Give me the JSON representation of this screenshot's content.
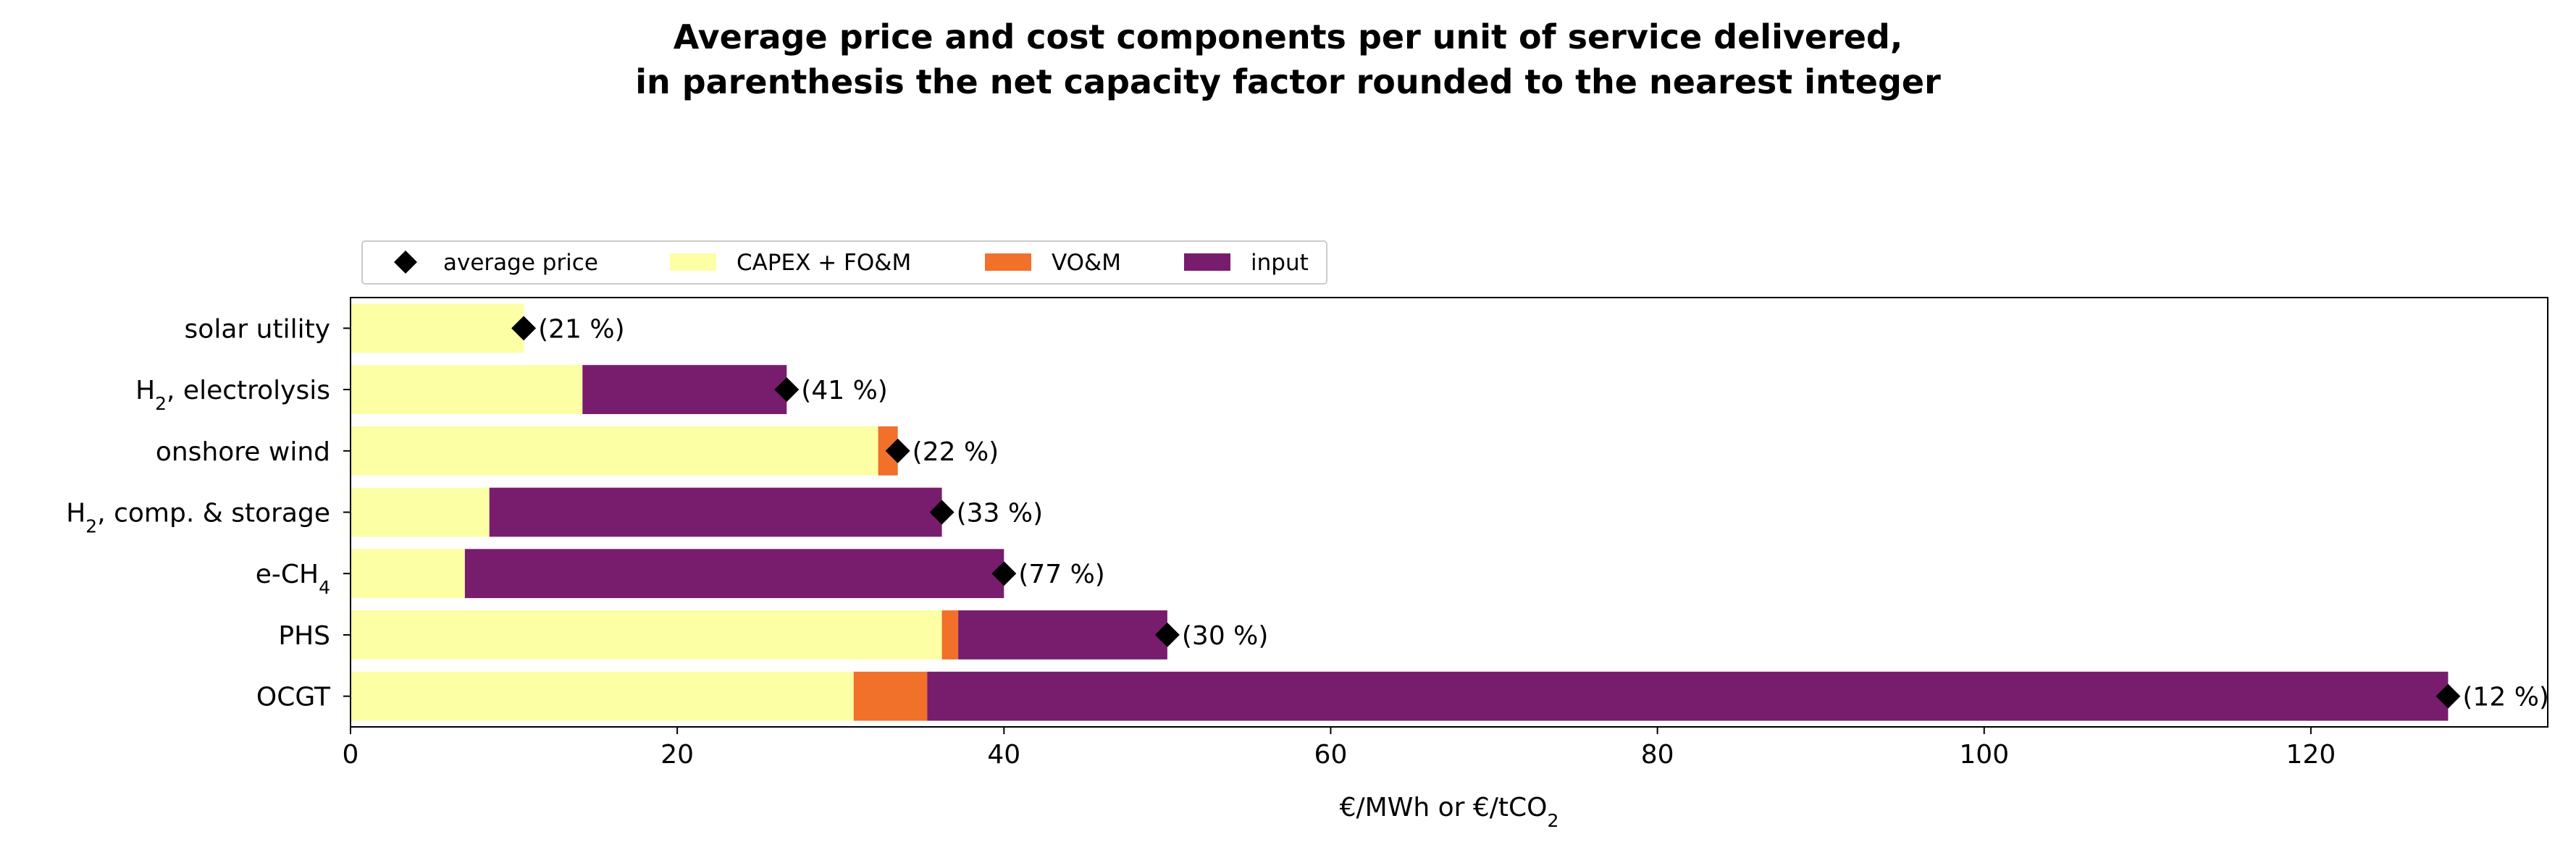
{
  "chart_data": {
    "type": "bar",
    "orientation": "horizontal",
    "stacked": true,
    "title": "Average price and cost components per unit of service delivered,\nin parenthesis the net capacity factor rounded to the nearest integer",
    "xlabel": "€/MWh or €/tCO₂",
    "ylabel": "",
    "xlim": [
      0,
      134.5
    ],
    "xticks": [
      0,
      20,
      40,
      60,
      80,
      100,
      120
    ],
    "grid": false,
    "legend_position": "top-left",
    "categories": [
      "solar utility",
      "H₂, electrolysis",
      "onshore wind",
      "H₂, comp. & storage",
      "e-CH₄",
      "PHS",
      "OCGT"
    ],
    "series": [
      {
        "name": "CAPEX + FO&M",
        "color": "#fcffa4",
        "values": [
          10.6,
          14.2,
          32.3,
          8.5,
          7.0,
          36.2,
          30.8
        ]
      },
      {
        "name": "VO&M",
        "color": "#f1702a",
        "values": [
          0.0,
          0.0,
          1.2,
          0.0,
          0.0,
          1.0,
          4.5
        ]
      },
      {
        "name": "input",
        "color": "#781c6d",
        "values": [
          0.0,
          12.5,
          0.0,
          27.7,
          33.0,
          12.8,
          93.1
        ]
      }
    ],
    "average_price": {
      "name": "average price",
      "values": [
        10.6,
        26.7,
        33.5,
        36.2,
        40.0,
        50.0,
        128.4
      ]
    },
    "capacity_factor_labels": [
      "(21 %)",
      "(41 %)",
      "(22 %)",
      "(33 %)",
      "(77 %)",
      "(30 %)",
      "(12 %)"
    ]
  }
}
